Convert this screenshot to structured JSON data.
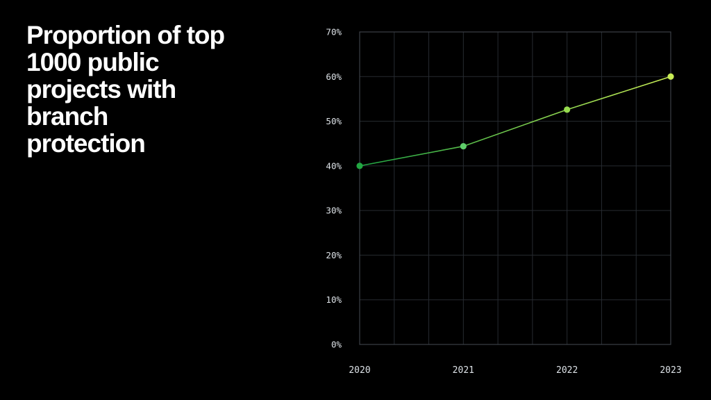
{
  "slide": {
    "background_color": "#000000",
    "title": "Proportion of top\n1000 public\nprojects with\nbranch\nprotection",
    "title_color": "#ffffff"
  },
  "chart_data": {
    "type": "line",
    "title": "Proportion of top 1000 public projects with branch protection",
    "x_labels": [
      "2020",
      "2021",
      "2022",
      "2023"
    ],
    "values": [
      40,
      44.4,
      52.6,
      60
    ],
    "unit": "%",
    "ylim": [
      0,
      70
    ],
    "y_ticks": [
      "0%",
      "10%",
      "20%",
      "30%",
      "40%",
      "50%",
      "60%",
      "70%"
    ],
    "x_minor_divisions": 3,
    "grid": true,
    "legend": "none",
    "colors": {
      "line_gradient": [
        "#1fa544",
        "#c8ec55"
      ],
      "points": [
        "#22a742",
        "#5fcd6a",
        "#97dc4e",
        "#c8ec55"
      ],
      "grid": "#272b31",
      "border": "#3b4047",
      "tick_label": "#dde2e7"
    }
  }
}
